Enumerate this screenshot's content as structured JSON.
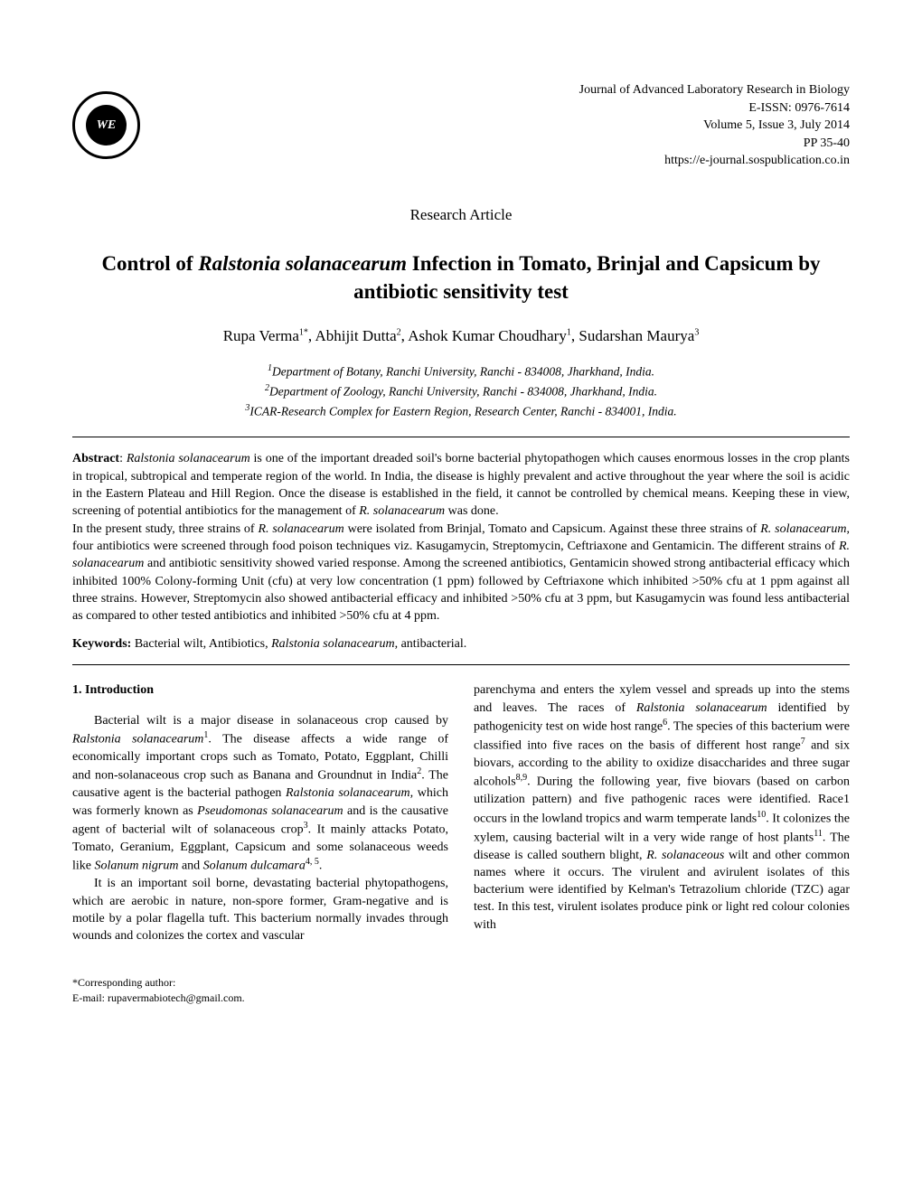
{
  "logo_text": "WE",
  "journal": {
    "name": "Journal of Advanced Laboratory Research in Biology",
    "eissn": "E-ISSN: 0976-7614",
    "volume_issue": "Volume 5, Issue 3, July 2014",
    "pages": "PP 35-40",
    "url": "https://e-journal.sospublication.co.in"
  },
  "article_type": "Research Article",
  "title_pre": "Control of ",
  "title_italic": "Ralstonia solanacearum",
  "title_post": " Infection in Tomato, Brinjal and Capsicum by antibiotic sensitivity test",
  "authors_html": "Rupa Verma<sup>1*</sup>, Abhijit Dutta<sup>2</sup>, Ashok Kumar Choudhary<sup>1</sup>, Sudarshan Maurya<sup>3</sup>",
  "affiliations": {
    "a1": "Department of Botany, Ranchi University, Ranchi - 834008, Jharkhand, India.",
    "a2": "Department of Zoology, Ranchi University, Ranchi - 834008, Jharkhand, India.",
    "a3": "ICAR-Research Complex for Eastern Region, Research Center, Ranchi - 834001, India."
  },
  "abstract_label": "Abstract",
  "abstract_p1_html": "<span class=\"italic\">Ralstonia solanacearum</span> is one of the important dreaded soil's borne bacterial phytopathogen which causes enormous losses in the crop plants in tropical, subtropical and temperate region of the world. In India, the disease is highly prevalent and active throughout the year where the soil is acidic in the Eastern Plateau and Hill Region. Once the disease is established in the field, it cannot be controlled by chemical means. Keeping these in view, screening of potential antibiotics for the management of <span class=\"italic\">R. solanacearum</span> was done.",
  "abstract_p2_html": "In the present study, three strains of <span class=\"italic\">R. solanacearum</span> were isolated from Brinjal, Tomato and Capsicum. Against these three strains of <span class=\"italic\">R. solanacearum</span>, four antibiotics were screened through food poison techniques viz. Kasugamycin, Streptomycin, Ceftriaxone and Gentamicin. The different strains of <span class=\"italic\">R. solanacearum</span> and antibiotic sensitivity showed varied response. Among the screened antibiotics, Gentamicin showed strong antibacterial efficacy which inhibited 100% Colony-forming Unit (cfu) at very low concentration (1 ppm) followed by Ceftriaxone which inhibited &gt;50% cfu at 1 ppm against all three strains. However, Streptomycin also showed antibacterial efficacy and inhibited &gt;50% cfu at 3 ppm, but Kasugamycin was found less antibacterial as compared to other tested antibiotics and inhibited &gt;50% cfu at 4 ppm.",
  "keywords_label": "Keywords:",
  "keywords_html": " Bacterial wilt, Antibiotics, <span class=\"italic\">Ralstonia solanacearum</span>, antibacterial.",
  "section1_heading": "1.   Introduction",
  "col1_p1_html": "Bacterial wilt is a major disease in solanaceous crop caused by <span class=\"italic\">Ralstonia solanacearum</span><sup>1</sup>. The disease affects a wide range of economically important crops such as Tomato, Potato, Eggplant, Chilli and non-solanaceous crop such as Banana and Groundnut in India<sup>2</sup>. The causative agent is the bacterial pathogen <span class=\"italic\">Ralstonia solanacearum,</span> which was formerly known as <span class=\"italic\">Pseudomonas solanacearum</span> and is the causative agent of bacterial wilt of solanaceous crop<sup>3</sup>. It mainly attacks Potato, Tomato, Geranium, Eggplant, Capsicum and some solanaceous weeds like <span class=\"italic\">Solanum nigrum</span> and <span class=\"italic\">Solanum dulcamara</span><sup>4, 5</sup>.",
  "col1_p2_html": "It is an important soil borne, devastating bacterial phytopathogens, which are aerobic in nature, non-spore former, Gram-negative and is motile by a polar flagella tuft. This bacterium normally invades through wounds and colonizes the cortex and vascular",
  "col2_p1_html": "parenchyma and enters the xylem vessel and spreads up into the stems and leaves. The races of <span class=\"italic\">Ralstonia solanacearum</span> identified by pathogenicity test on wide host range<sup>6</sup>. The species of this bacterium were classified into five races on the basis of different host range<sup>7</sup> and six biovars, according to the ability to oxidize disaccharides and three sugar alcohols<sup>8,9</sup>. During the following year, five biovars (based on carbon utilization pattern) and five pathogenic races were identified. Race1 occurs in the lowland tropics and warm temperate lands<sup>10</sup>. It colonizes the xylem, causing bacterial wilt in a very wide range of host plants<sup>11</sup>. The disease is called southern blight, <span class=\"italic\">R. solanaceous</span> wilt and other common names where it occurs. The virulent and avirulent isolates of this bacterium were identified by Kelman's Tetrazolium chloride (TZC) agar test. In this test, virulent isolates produce pink or light red colour colonies with",
  "footer": {
    "corresponding": "*Corresponding author:",
    "email": "E-mail: rupavermabiotech@gmail.com."
  }
}
